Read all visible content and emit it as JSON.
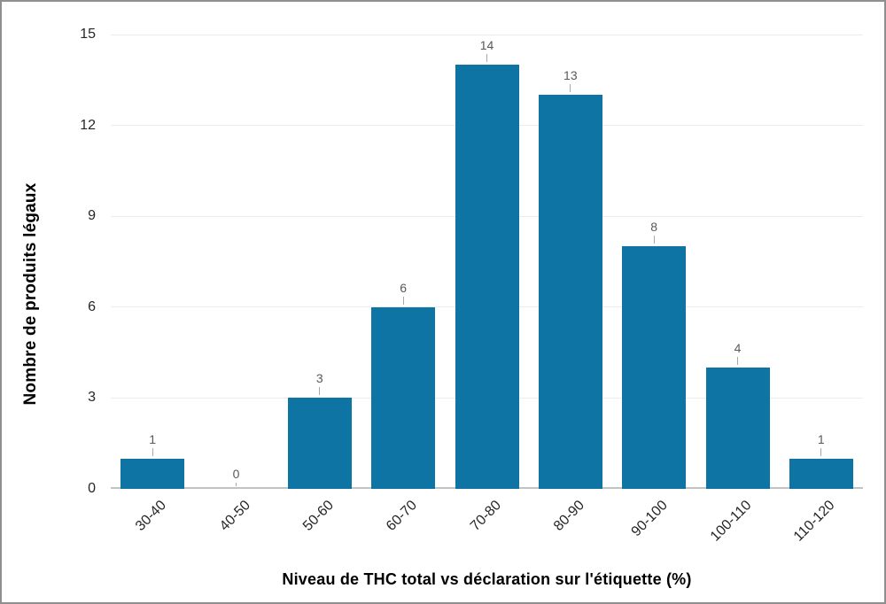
{
  "chart_data": {
    "type": "bar",
    "title": "",
    "categories": [
      "30-40",
      "40-50",
      "50-60",
      "60-70",
      "70-80",
      "80-90",
      "90-100",
      "100-110",
      "110-120"
    ],
    "values": [
      1,
      0,
      3,
      6,
      14,
      13,
      8,
      4,
      1
    ],
    "xlabel": "Niveau de THC total vs déclaration sur l'étiquette (%)",
    "ylabel": "Nombre de produits légaux",
    "ylim": [
      0,
      15
    ],
    "yticks": [
      0,
      3,
      6,
      9,
      12,
      15
    ],
    "grid": "horizontal",
    "legend": "none",
    "data_labels_shown": true,
    "colors": {
      "bar": "#0E74A4",
      "data_label": "#595959",
      "tick_label": "#262626",
      "axis_title": "#000000",
      "gridline": "#ECECEC",
      "axis_line": "#C2C2C2",
      "leader_line": "#A8A8A8",
      "frame_border": "#8F8F8F",
      "background": "#FFFFFF"
    }
  }
}
